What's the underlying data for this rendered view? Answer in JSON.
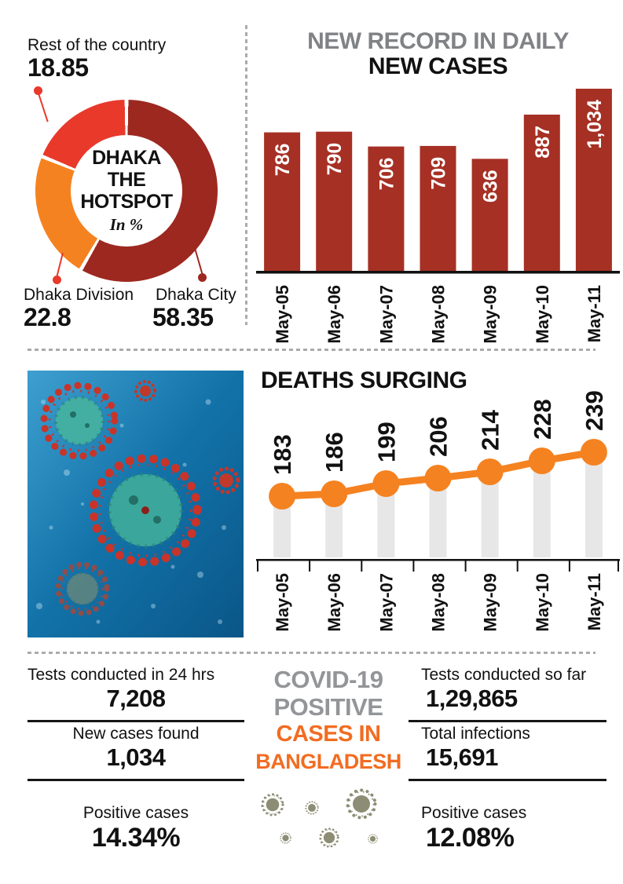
{
  "colors": {
    "donut_dark_red": "#9D2820",
    "bar_red": "#A63024",
    "bright_red": "#E8392B",
    "orange": "#F58220",
    "heading_gray": "#808285",
    "summary_gray": "#939598",
    "summary_orange": "#F26C21"
  },
  "chart_data": [
    {
      "type": "pie",
      "donut": true,
      "title": "DHAKA THE HOTSPOT",
      "title_lines": [
        "DHAKA",
        "THE",
        "HOTSPOT"
      ],
      "subtitle": "In %",
      "labels": [
        "Dhaka City",
        "Dhaka Division",
        "Rest of the country"
      ],
      "values": [
        58.35,
        22.8,
        18.85
      ],
      "value_labels": [
        "58.35",
        "22.8",
        "18.85"
      ],
      "colors": [
        "#9D2820",
        "#F58220",
        "#E8392B"
      ],
      "start_angle_deg": 0,
      "units": "percent"
    },
    {
      "type": "bar",
      "title_line1": "NEW RECORD IN DAILY",
      "title_line2": "NEW CASES",
      "categories": [
        "May-05",
        "May-06",
        "May-07",
        "May-08",
        "May-09",
        "May-10",
        "May-11"
      ],
      "values": [
        786,
        790,
        706,
        709,
        636,
        887,
        1034
      ],
      "value_labels": [
        "786",
        "790",
        "706",
        "709",
        "636",
        "887",
        "1,034"
      ],
      "bar_color": "#A63024",
      "value_label_color": "#FFFFFF",
      "ylim": [
        0,
        1034
      ],
      "grid": false,
      "legend": "none"
    },
    {
      "type": "line",
      "title": "DEATHS SURGING",
      "categories": [
        "May-05",
        "May-06",
        "May-07",
        "May-08",
        "May-09",
        "May-10",
        "May-11"
      ],
      "values": [
        183,
        186,
        199,
        206,
        214,
        228,
        239
      ],
      "value_labels": [
        "183",
        "186",
        "199",
        "206",
        "214",
        "228",
        "239"
      ],
      "line_color": "#F58220",
      "marker_color": "#F58220",
      "drop_bar_color": "#E7E7E7",
      "grid": false,
      "legend": "none"
    }
  ],
  "summary": {
    "left": [
      {
        "label": "Tests conducted in 24 hrs",
        "value": "7,208"
      },
      {
        "label": "New cases found",
        "value": "1,034"
      },
      {
        "label": "Positive cases",
        "value": "14.34%"
      }
    ],
    "center_title": {
      "line1": "COVID-19",
      "line2": "POSITIVE",
      "line3": "CASES IN",
      "line4": "BANGLADESH"
    },
    "right": [
      {
        "label": "Tests conducted so far",
        "value": "1,29,865"
      },
      {
        "label": "Total infections",
        "value": "15,691"
      },
      {
        "label": "Positive cases",
        "value": "12.08%"
      }
    ]
  }
}
